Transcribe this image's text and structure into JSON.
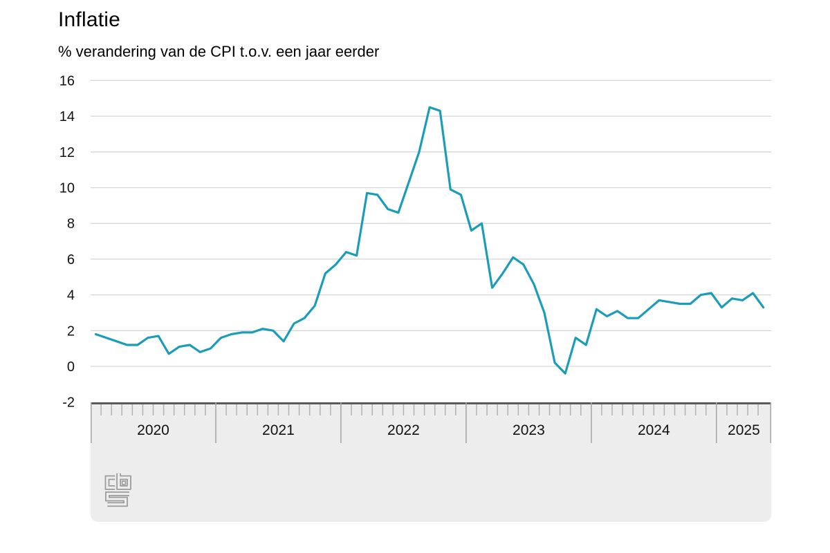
{
  "page": {
    "title": "Inflatie",
    "subtitle": "% verandering van de CPI t.o.v. een jaar eerder"
  },
  "logo": {
    "name": "cbs-logo"
  },
  "colors": {
    "line": "#1b9db8",
    "gridline": "#d6d6d6",
    "text": "#111111",
    "band": "#ededed",
    "axis_line": "#58595b",
    "tick": "#b2b2b2",
    "separator": "#a3a3a3",
    "logo": "#9a9a9a"
  },
  "chart_data": {
    "type": "line",
    "title": "Inflatie",
    "subtitle": "% verandering van de CPI t.o.v. een jaar eerder",
    "xlabel": "",
    "ylabel": "% verandering CPI t.o.v. een jaar eerder",
    "ylim": [
      -2,
      16
    ],
    "yticks": [
      16,
      14,
      12,
      10,
      8,
      6,
      4,
      2,
      0,
      -2
    ],
    "grid": true,
    "legend": "none",
    "x_years": [
      "2020",
      "2021",
      "2022",
      "2023",
      "2024",
      "2025"
    ],
    "months_per_year": [
      12,
      12,
      12,
      12,
      12,
      5
    ],
    "series": [
      {
        "name": "Inflatie (CPI)",
        "color": "#1b9db8",
        "first_month": "2020-01",
        "last_month": "2025-05",
        "values": [
          1.8,
          1.6,
          1.4,
          1.2,
          1.2,
          1.6,
          1.7,
          0.7,
          1.1,
          1.2,
          0.8,
          1.0,
          1.6,
          1.8,
          1.9,
          1.9,
          2.1,
          2.0,
          1.4,
          2.4,
          2.7,
          3.4,
          5.2,
          5.7,
          6.4,
          6.2,
          9.7,
          9.6,
          8.8,
          8.6,
          10.3,
          12.0,
          14.5,
          14.3,
          9.9,
          9.6,
          7.6,
          8.0,
          4.4,
          5.2,
          6.1,
          5.7,
          4.6,
          3.0,
          0.2,
          -0.4,
          1.6,
          1.2,
          3.2,
          2.8,
          3.1,
          2.7,
          2.7,
          3.2,
          3.7,
          3.6,
          3.5,
          3.5,
          4.0,
          4.1,
          3.3,
          3.8,
          3.7,
          4.1,
          3.3
        ]
      }
    ]
  }
}
